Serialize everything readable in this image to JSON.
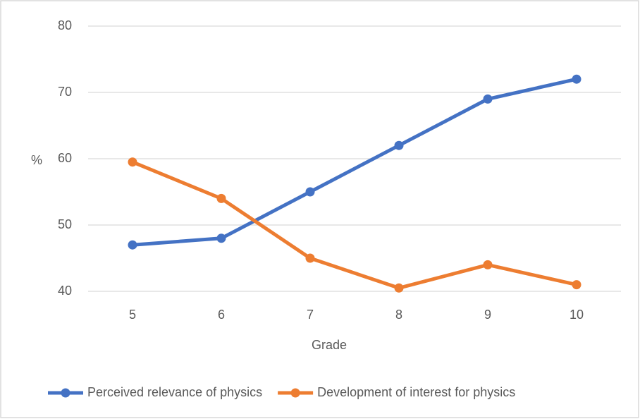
{
  "chart_data": {
    "type": "line",
    "categories": [
      "5",
      "6",
      "7",
      "8",
      "9",
      "10"
    ],
    "series": [
      {
        "name": "Perceived relevance of physics",
        "color": "#4472c4",
        "values": [
          47,
          48,
          55,
          62,
          69,
          72
        ]
      },
      {
        "name": "Development of interest for physics",
        "color": "#ed7d31",
        "values": [
          59.5,
          54,
          45,
          40.5,
          44,
          41
        ]
      }
    ],
    "xlabel": "Grade",
    "ylabel": "%",
    "ylim": [
      40,
      80
    ],
    "yticks": [
      40,
      50,
      60,
      70,
      80
    ],
    "grid": true,
    "legend": "bottom"
  }
}
